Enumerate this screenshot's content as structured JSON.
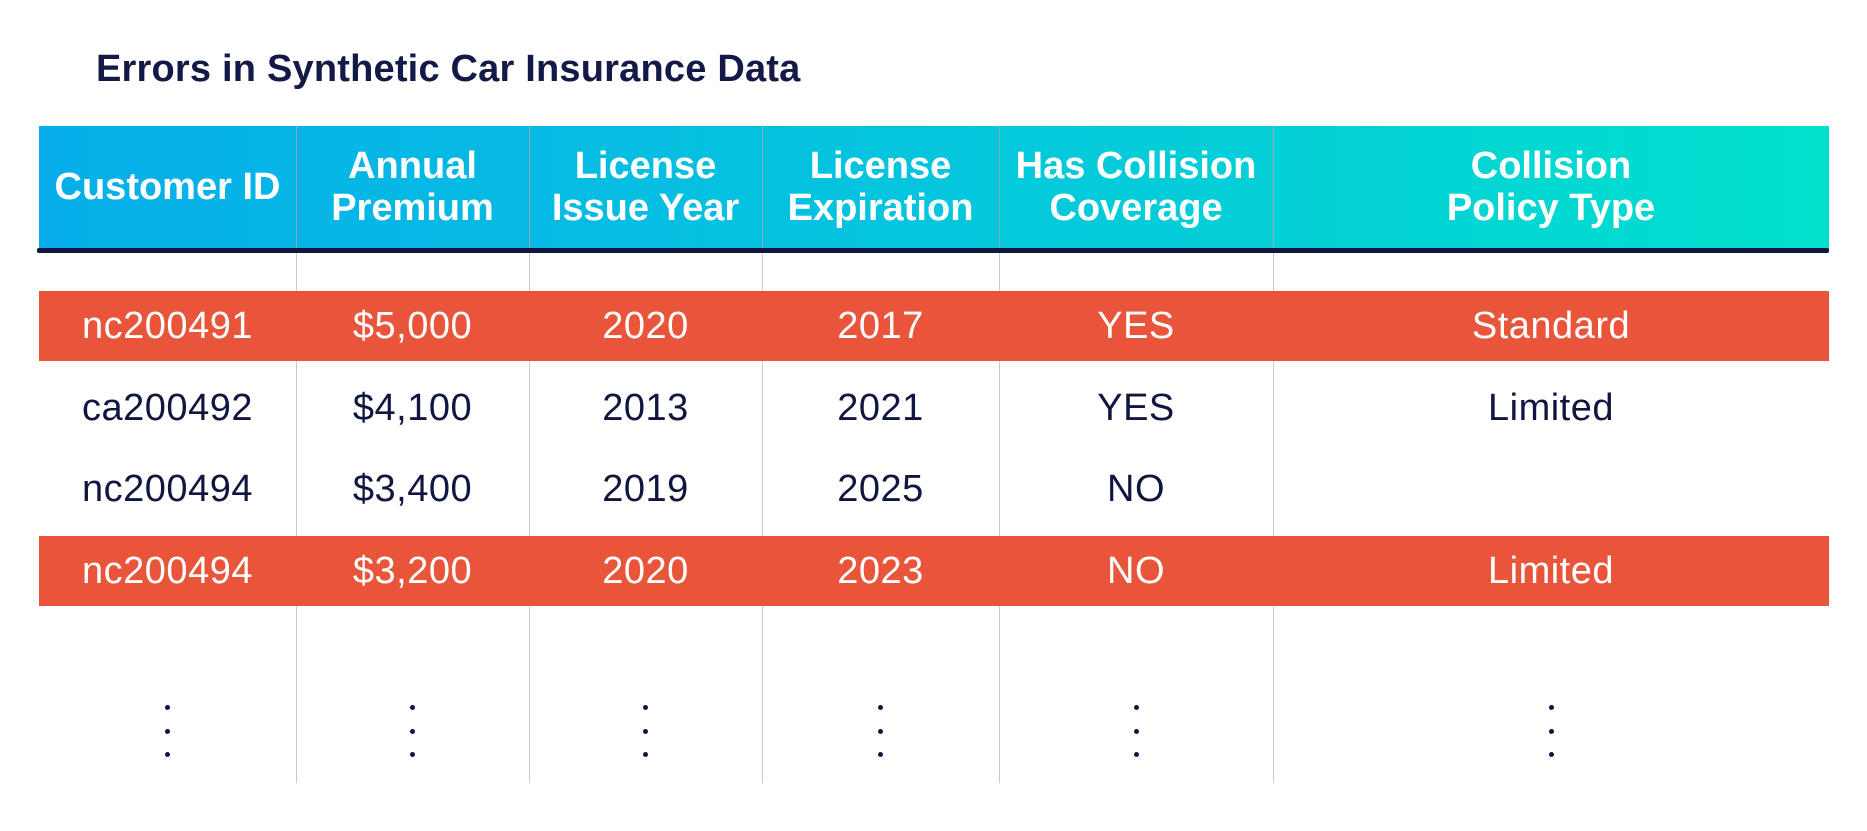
{
  "title": "Errors in Synthetic Car Insurance Data",
  "chart_data": {
    "type": "table",
    "title": "Errors in Synthetic Car Insurance Data",
    "columns": [
      "Customer ID",
      "Annual\nPremium",
      "License\nIssue Year",
      "License\nExpiration",
      "Has Collision\nCoverage",
      "Collision\nPolicy Type"
    ],
    "rows": [
      {
        "cells": [
          "nc200491",
          "$5,000",
          "2020",
          "2017",
          "YES",
          "Standard"
        ],
        "highlight": true
      },
      {
        "cells": [
          "ca200492",
          "$4,100",
          "2013",
          "2021",
          "YES",
          "Limited"
        ],
        "highlight": false
      },
      {
        "cells": [
          "nc200494",
          "$3,400",
          "2019",
          "2025",
          "NO",
          ""
        ],
        "highlight": false
      },
      {
        "cells": [
          "nc200494",
          "$3,200",
          "2020",
          "2023",
          "NO",
          "Limited"
        ],
        "highlight": true
      }
    ],
    "continuation_marker": "vertical-ellipsis",
    "colors": {
      "header_gradient_start": "#07aeea",
      "header_gradient_end": "#02e0cd",
      "error_row": "#e9553a",
      "text": "#10163f"
    }
  }
}
